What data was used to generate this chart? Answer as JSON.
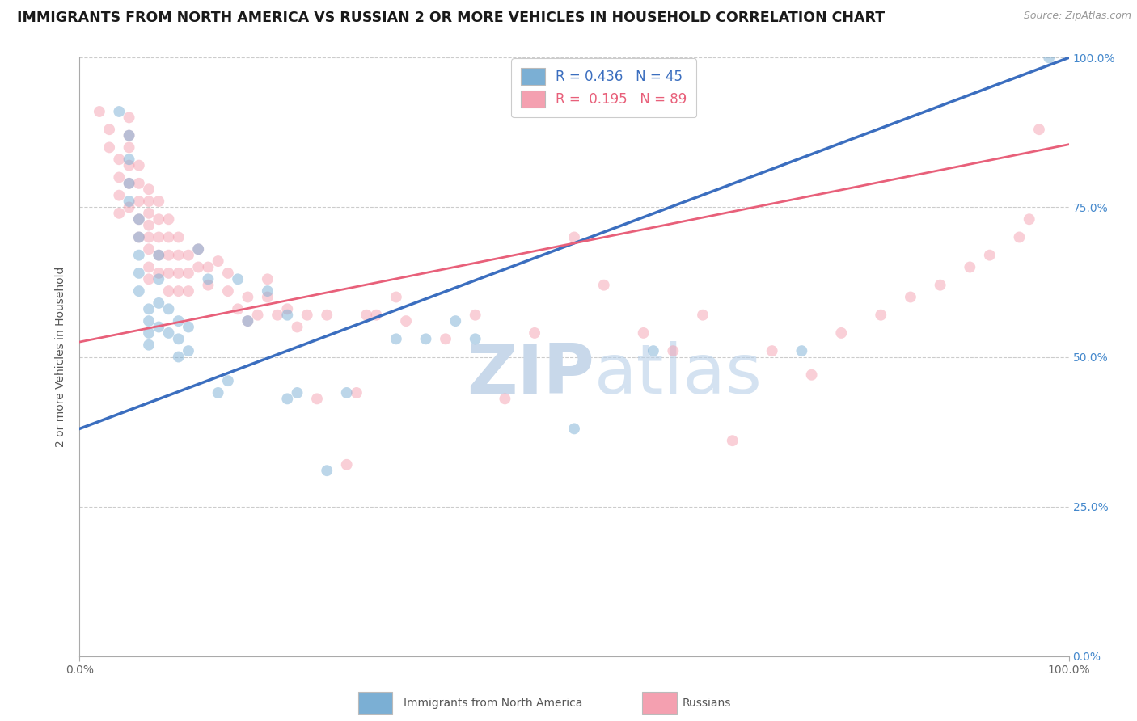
{
  "title": "IMMIGRANTS FROM NORTH AMERICA VS RUSSIAN 2 OR MORE VEHICLES IN HOUSEHOLD CORRELATION CHART",
  "source": "Source: ZipAtlas.com",
  "ylabel": "2 or more Vehicles in Household",
  "xlim": [
    0.0,
    1.0
  ],
  "ylim": [
    0.0,
    1.0
  ],
  "ytick_labels": [
    "0.0%",
    "25.0%",
    "50.0%",
    "75.0%",
    "100.0%"
  ],
  "ytick_positions": [
    0.0,
    0.25,
    0.5,
    0.75,
    1.0
  ],
  "legend_blue_label": "R = 0.436   N = 45",
  "legend_pink_label": "R =  0.195   N = 89",
  "bottom_legend_blue": "Immigrants from North America",
  "bottom_legend_pink": "Russians",
  "blue_color": "#7BAFD4",
  "pink_color": "#F4A0B0",
  "line_blue_color": "#3B6EBF",
  "line_pink_color": "#E8607A",
  "watermark_zip": "ZIP",
  "watermark_atlas": "atlas",
  "watermark_color": "#C8D8EA",
  "background_color": "#FFFFFF",
  "grid_color": "#CCCCCC",
  "title_fontsize": 12.5,
  "axis_label_fontsize": 10,
  "tick_fontsize": 10,
  "marker_size": 100,
  "marker_alpha": 0.5,
  "right_tick_color": "#4488CC",
  "blue_line_x0": 0.0,
  "blue_line_y0": 0.38,
  "blue_line_x1": 1.0,
  "blue_line_y1": 1.0,
  "pink_line_x0": 0.0,
  "pink_line_y0": 0.525,
  "pink_line_x1": 1.0,
  "pink_line_y1": 0.855,
  "blue_x": [
    0.04,
    0.05,
    0.05,
    0.05,
    0.05,
    0.06,
    0.06,
    0.06,
    0.06,
    0.06,
    0.07,
    0.07,
    0.07,
    0.07,
    0.08,
    0.08,
    0.08,
    0.08,
    0.09,
    0.09,
    0.1,
    0.1,
    0.1,
    0.11,
    0.11,
    0.12,
    0.13,
    0.14,
    0.15,
    0.16,
    0.17,
    0.19,
    0.21,
    0.21,
    0.22,
    0.25,
    0.27,
    0.32,
    0.35,
    0.38,
    0.4,
    0.5,
    0.58,
    0.73,
    0.98
  ],
  "blue_y": [
    0.91,
    0.87,
    0.83,
    0.79,
    0.76,
    0.73,
    0.7,
    0.67,
    0.64,
    0.61,
    0.58,
    0.56,
    0.54,
    0.52,
    0.67,
    0.63,
    0.59,
    0.55,
    0.58,
    0.54,
    0.56,
    0.53,
    0.5,
    0.55,
    0.51,
    0.68,
    0.63,
    0.44,
    0.46,
    0.63,
    0.56,
    0.61,
    0.57,
    0.43,
    0.44,
    0.31,
    0.44,
    0.53,
    0.53,
    0.56,
    0.53,
    0.38,
    0.51,
    0.51,
    1.0
  ],
  "pink_x": [
    0.02,
    0.03,
    0.03,
    0.04,
    0.04,
    0.04,
    0.04,
    0.05,
    0.05,
    0.05,
    0.05,
    0.05,
    0.05,
    0.06,
    0.06,
    0.06,
    0.06,
    0.06,
    0.07,
    0.07,
    0.07,
    0.07,
    0.07,
    0.07,
    0.07,
    0.07,
    0.08,
    0.08,
    0.08,
    0.08,
    0.08,
    0.09,
    0.09,
    0.09,
    0.09,
    0.09,
    0.1,
    0.1,
    0.1,
    0.1,
    0.11,
    0.11,
    0.11,
    0.12,
    0.12,
    0.13,
    0.13,
    0.14,
    0.15,
    0.15,
    0.16,
    0.17,
    0.17,
    0.18,
    0.19,
    0.19,
    0.2,
    0.21,
    0.22,
    0.23,
    0.24,
    0.25,
    0.27,
    0.28,
    0.29,
    0.3,
    0.32,
    0.33,
    0.37,
    0.4,
    0.43,
    0.46,
    0.5,
    0.53,
    0.57,
    0.6,
    0.63,
    0.66,
    0.7,
    0.74,
    0.77,
    0.81,
    0.84,
    0.87,
    0.9,
    0.92,
    0.95,
    0.96,
    0.97
  ],
  "pink_y": [
    0.91,
    0.88,
    0.85,
    0.83,
    0.8,
    0.77,
    0.74,
    0.9,
    0.87,
    0.85,
    0.82,
    0.79,
    0.75,
    0.82,
    0.79,
    0.76,
    0.73,
    0.7,
    0.78,
    0.76,
    0.74,
    0.72,
    0.7,
    0.68,
    0.65,
    0.63,
    0.76,
    0.73,
    0.7,
    0.67,
    0.64,
    0.73,
    0.7,
    0.67,
    0.64,
    0.61,
    0.7,
    0.67,
    0.64,
    0.61,
    0.67,
    0.64,
    0.61,
    0.68,
    0.65,
    0.65,
    0.62,
    0.66,
    0.64,
    0.61,
    0.58,
    0.56,
    0.6,
    0.57,
    0.63,
    0.6,
    0.57,
    0.58,
    0.55,
    0.57,
    0.43,
    0.57,
    0.32,
    0.44,
    0.57,
    0.57,
    0.6,
    0.56,
    0.53,
    0.57,
    0.43,
    0.54,
    0.7,
    0.62,
    0.54,
    0.51,
    0.57,
    0.36,
    0.51,
    0.47,
    0.54,
    0.57,
    0.6,
    0.62,
    0.65,
    0.67,
    0.7,
    0.73,
    0.88
  ]
}
